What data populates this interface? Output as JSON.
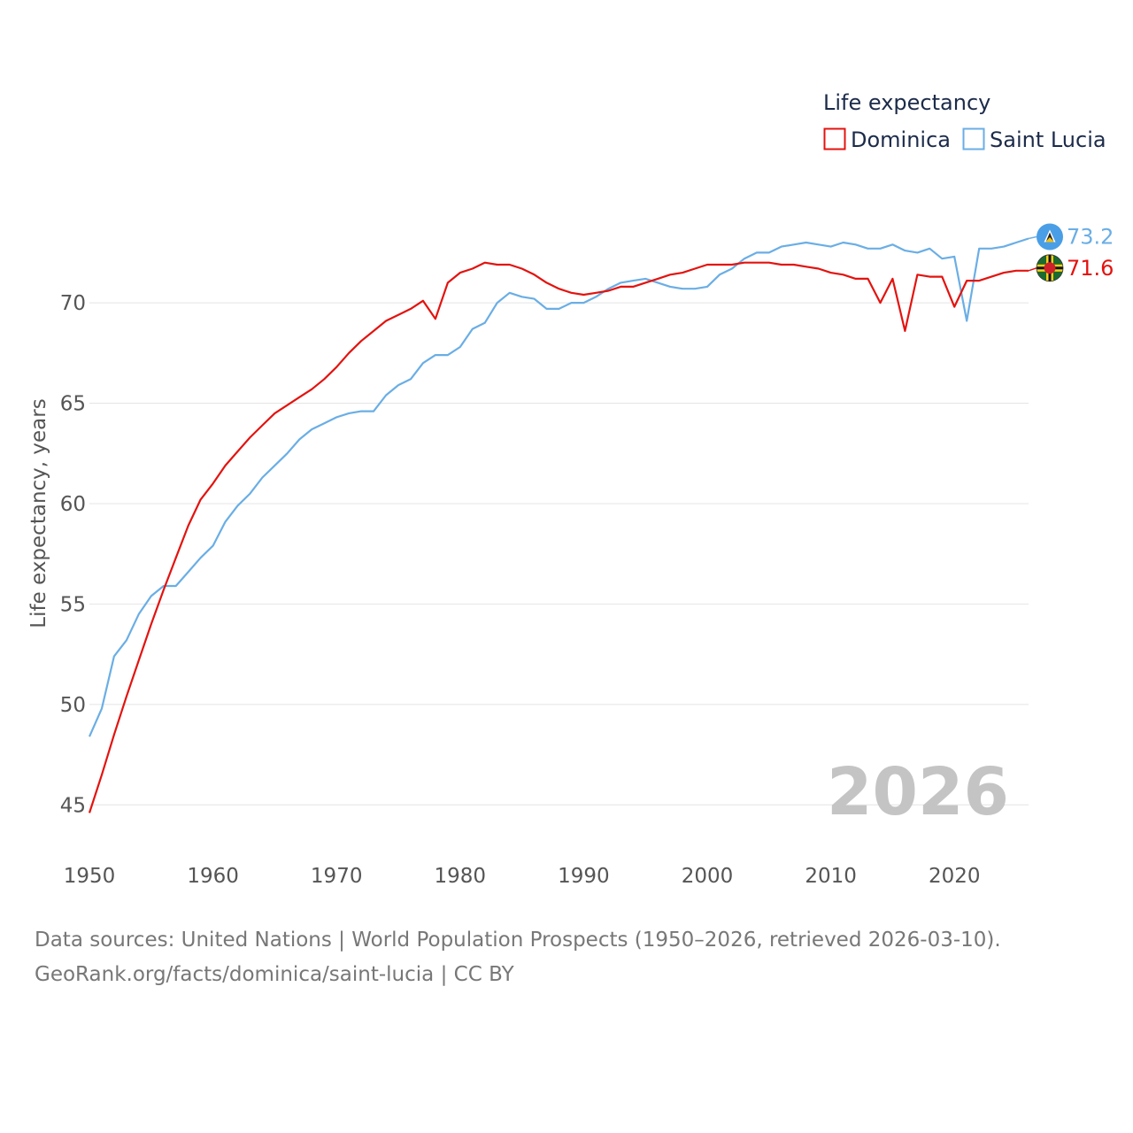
{
  "chart_data": {
    "type": "line",
    "title": "",
    "ylabel": "Life expectancy, years",
    "xlabel": "",
    "legend_title": "Life expectancy",
    "legend_position": "top-right",
    "watermark_year": "2026",
    "xlim": [
      1950,
      2026
    ],
    "ylim": [
      44,
      74.5
    ],
    "x_ticks": [
      1950,
      1960,
      1970,
      1980,
      1990,
      2000,
      2010,
      2020
    ],
    "y_ticks": [
      45,
      50,
      55,
      60,
      65,
      70
    ],
    "grid": true,
    "x": [
      1950,
      1951,
      1952,
      1953,
      1954,
      1955,
      1956,
      1957,
      1958,
      1959,
      1960,
      1961,
      1962,
      1963,
      1964,
      1965,
      1966,
      1967,
      1968,
      1969,
      1970,
      1971,
      1972,
      1973,
      1974,
      1975,
      1976,
      1977,
      1978,
      1979,
      1980,
      1981,
      1982,
      1983,
      1984,
      1985,
      1986,
      1987,
      1988,
      1989,
      1990,
      1991,
      1992,
      1993,
      1994,
      1995,
      1996,
      1997,
      1998,
      1999,
      2000,
      2001,
      2002,
      2003,
      2004,
      2005,
      2006,
      2007,
      2008,
      2009,
      2010,
      2011,
      2012,
      2013,
      2014,
      2015,
      2016,
      2017,
      2018,
      2019,
      2020,
      2021,
      2022,
      2023,
      2024,
      2025,
      2026
    ],
    "series": [
      {
        "name": "Dominica",
        "color": "#e3130f",
        "end_label": "71.6",
        "flag_icon": "dominica-flag-icon",
        "values": [
          44.6,
          46.5,
          48.5,
          50.4,
          52.2,
          54.0,
          55.7,
          57.3,
          58.9,
          60.2,
          61.0,
          61.9,
          62.6,
          63.3,
          63.9,
          64.5,
          64.9,
          65.3,
          65.7,
          66.2,
          66.8,
          67.5,
          68.1,
          68.6,
          69.1,
          69.4,
          69.7,
          70.1,
          69.2,
          71.0,
          71.5,
          71.7,
          72.0,
          71.9,
          71.9,
          71.7,
          71.4,
          71.0,
          70.7,
          70.5,
          70.4,
          70.5,
          70.6,
          70.8,
          70.8,
          71.0,
          71.2,
          71.4,
          71.5,
          71.7,
          71.9,
          71.9,
          71.9,
          72.0,
          72.0,
          72.0,
          71.9,
          71.9,
          71.8,
          71.7,
          71.5,
          71.4,
          71.2,
          71.2,
          70.0,
          71.2,
          68.6,
          71.4,
          71.3,
          71.3,
          69.8,
          71.1,
          71.1,
          71.3,
          71.5,
          71.6,
          71.6
        ]
      },
      {
        "name": "Saint Lucia",
        "color": "#6aaee5",
        "end_label": "73.2",
        "flag_icon": "saint-lucia-flag-icon",
        "values": [
          48.4,
          49.8,
          52.4,
          53.2,
          54.5,
          55.4,
          55.9,
          55.9,
          56.6,
          57.3,
          57.9,
          59.1,
          59.9,
          60.5,
          61.3,
          61.9,
          62.5,
          63.2,
          63.7,
          64.0,
          64.3,
          64.5,
          64.6,
          64.6,
          65.4,
          65.9,
          66.2,
          67.0,
          67.4,
          67.4,
          67.8,
          68.7,
          69.0,
          70.0,
          70.5,
          70.3,
          70.2,
          69.7,
          69.7,
          70.0,
          70.0,
          70.3,
          70.7,
          71.0,
          71.1,
          71.2,
          71.0,
          70.8,
          70.7,
          70.7,
          70.8,
          71.4,
          71.7,
          72.2,
          72.5,
          72.5,
          72.8,
          72.9,
          73.0,
          72.9,
          72.8,
          73.0,
          72.9,
          72.7,
          72.7,
          72.9,
          72.6,
          72.5,
          72.7,
          72.2,
          72.3,
          69.1,
          72.7,
          72.7,
          72.8,
          73.0,
          73.2
        ]
      }
    ]
  },
  "source": {
    "line1": "Data sources: United Nations | World Population Prospects (1950–2026, retrieved 2026-03-10).",
    "line2": "GeoRank.org/facts/dominica/saint-lucia | CC BY"
  }
}
